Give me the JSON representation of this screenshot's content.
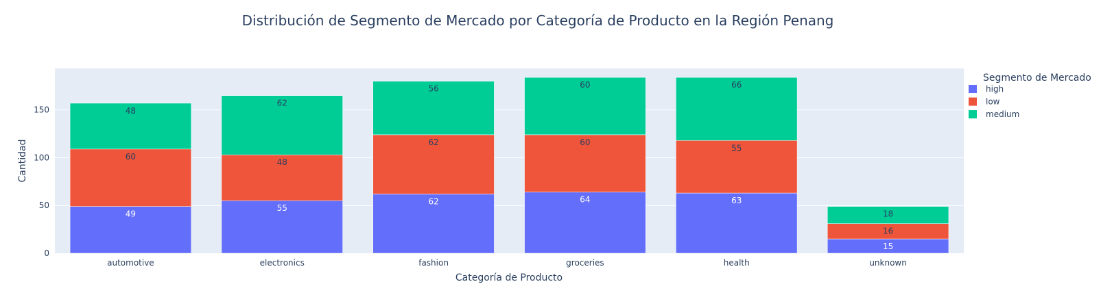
{
  "chart_data": {
    "type": "bar",
    "stacked": true,
    "title": "Distribución de Segmento de Mercado por Categoría de Producto en la Región Penang",
    "xlabel": "Categoría de Producto",
    "ylabel": "Cantidad",
    "categories": [
      "automotive",
      "electronics",
      "fashion",
      "groceries",
      "health",
      "unknown"
    ],
    "series": [
      {
        "name": "high",
        "color": "#636efa",
        "label_color": "#ffffff",
        "values": [
          49,
          55,
          62,
          64,
          63,
          15
        ]
      },
      {
        "name": "low",
        "color": "#ef553b",
        "label_color": "#2a3f5f",
        "values": [
          60,
          48,
          62,
          60,
          55,
          16
        ]
      },
      {
        "name": "medium",
        "color": "#00cc96",
        "label_color": "#2a3f5f",
        "values": [
          48,
          62,
          56,
          60,
          66,
          18
        ]
      }
    ],
    "ylim": [
      0,
      193.4
    ],
    "yticks": [
      0,
      50,
      100,
      150
    ],
    "legend_title": "Segmento de Mercado",
    "legend_position": "top-right",
    "grid": true,
    "plot_bg": "#e5ecf6"
  }
}
